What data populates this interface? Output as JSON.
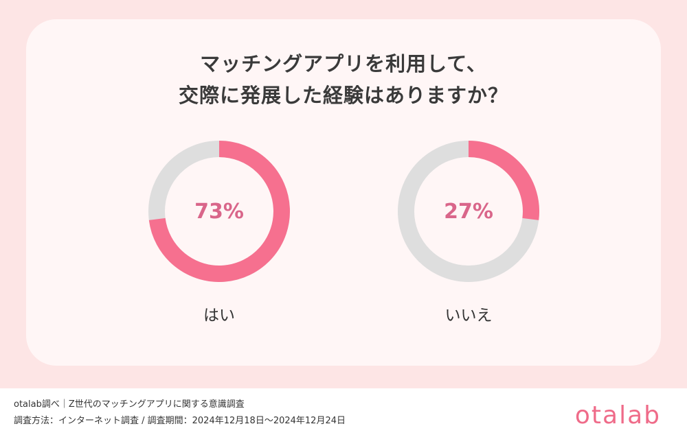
{
  "chart_data": {
    "type": "pie",
    "title": "マッチングアプリを利用して、交際に発展した経験はありますか？",
    "title_lines": [
      "マッチングアプリを利用して、",
      "交際に発展した経験はありますか？"
    ],
    "charts": [
      {
        "label": "はい",
        "value": 73,
        "value_label": "73%"
      },
      {
        "label": "いいえ",
        "value": 27,
        "value_label": "27%"
      }
    ]
  },
  "colors": {
    "accent": "#f6708f",
    "track": "#dedede",
    "percent_text": "#d9668a"
  },
  "footer": {
    "source": "otalab調べ｜Z世代のマッチングアプリに関する意識調査",
    "method": "調査方法：インターネット調査 / 調査期間：2024年12月18日〜2024年12月24日"
  },
  "logo_text": "otalab"
}
